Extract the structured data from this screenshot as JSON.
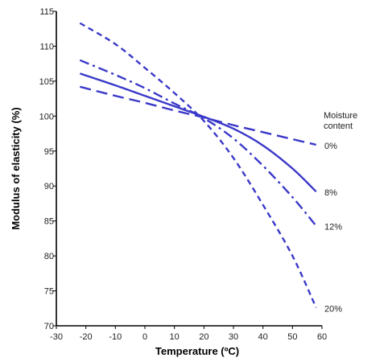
{
  "chart_data": {
    "type": "line",
    "xlabel": "Temperature (ºC)",
    "ylabel": "Modulus of elasticity (%)",
    "xlim": [
      -30,
      60
    ],
    "ylim": [
      70,
      115
    ],
    "xticks": [
      -30,
      -20,
      -10,
      0,
      10,
      20,
      30,
      40,
      50,
      60
    ],
    "yticks": [
      70,
      75,
      80,
      85,
      90,
      95,
      100,
      105,
      110,
      115
    ],
    "grid": false,
    "line_color": "#3a38c8",
    "legend_title": [
      "Moisture",
      "content"
    ],
    "series": [
      {
        "name": "0%",
        "style": "long-dash",
        "x": [
          -22,
          -10,
          0,
          10,
          20,
          30,
          40,
          50,
          58
        ],
        "y": [
          104.2,
          102.9,
          101.9,
          100.8,
          99.8,
          98.7,
          97.7,
          96.7,
          95.9
        ]
      },
      {
        "name": "8%",
        "style": "solid",
        "x": [
          -22,
          -10,
          0,
          10,
          20,
          30,
          40,
          50,
          58
        ],
        "y": [
          106.1,
          104.4,
          102.9,
          101.4,
          99.9,
          98.2,
          95.8,
          92.5,
          89.2
        ]
      },
      {
        "name": "12%",
        "style": "dash-dot",
        "x": [
          -22,
          -10,
          0,
          10,
          20,
          30,
          40,
          50,
          58
        ],
        "y": [
          108.0,
          105.9,
          104.0,
          101.8,
          99.7,
          96.8,
          92.9,
          88.4,
          84.3
        ]
      },
      {
        "name": "20%",
        "style": "short-dash",
        "x": [
          -22,
          -10,
          0,
          10,
          20,
          30,
          40,
          50,
          58
        ],
        "y": [
          113.3,
          110.3,
          106.9,
          103.3,
          99.3,
          94.0,
          87.3,
          80.0,
          72.6
        ]
      }
    ]
  }
}
